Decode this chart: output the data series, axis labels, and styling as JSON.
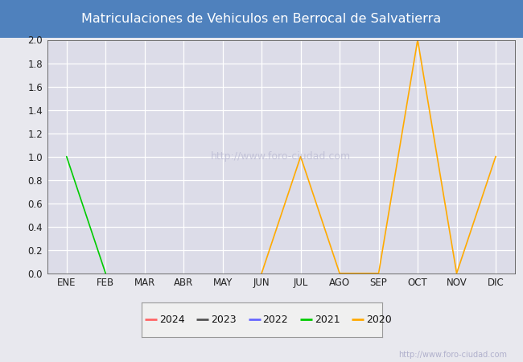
{
  "title": "Matriculaciones de Vehiculos en Berrocal de Salvatierra",
  "title_bg_color": "#4f81bd",
  "title_text_color": "#ffffff",
  "months": [
    "ENE",
    "FEB",
    "MAR",
    "ABR",
    "MAY",
    "JUN",
    "JUL",
    "AGO",
    "SEP",
    "OCT",
    "NOV",
    "DIC"
  ],
  "ylim": [
    0.0,
    2.0
  ],
  "yticks": [
    0.0,
    0.2,
    0.4,
    0.6,
    0.8,
    1.0,
    1.2,
    1.4,
    1.6,
    1.8,
    2.0
  ],
  "series": {
    "2024": {
      "color": "#ff6666",
      "data": [
        null,
        null,
        null,
        null,
        null,
        null,
        null,
        null,
        null,
        null,
        null,
        null
      ]
    },
    "2023": {
      "color": "#555555",
      "data": [
        null,
        null,
        null,
        null,
        null,
        null,
        null,
        null,
        null,
        null,
        null,
        null
      ]
    },
    "2022": {
      "color": "#6666ff",
      "data": [
        null,
        null,
        null,
        null,
        null,
        null,
        null,
        null,
        null,
        null,
        null,
        null
      ]
    },
    "2021": {
      "color": "#00cc00",
      "data": [
        1.0,
        0.0,
        null,
        null,
        null,
        null,
        null,
        null,
        null,
        null,
        null,
        null
      ]
    },
    "2020": {
      "color": "#ffaa00",
      "data": [
        null,
        null,
        null,
        null,
        null,
        0.0,
        1.0,
        0.0,
        0.0,
        2.0,
        0.0,
        1.0
      ]
    }
  },
  "legend_years": [
    "2024",
    "2023",
    "2022",
    "2021",
    "2020"
  ],
  "plot_bg_color": "#e8e8ee",
  "chart_area_color": "#dcdce8",
  "grid_color": "#ffffff",
  "border_color": "#555555",
  "watermark": "http://www.foro-ciudad.com",
  "watermark_color": "#b0b0cc",
  "legend_bg_color": "#f0f0f0",
  "legend_border_color": "#999999"
}
